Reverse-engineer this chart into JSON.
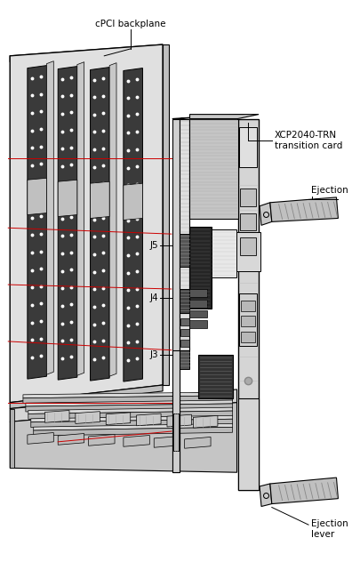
{
  "bg_color": "#ffffff",
  "lc": "#000000",
  "rc": "#cc0000",
  "labels": {
    "backplane": "cPCI backplane",
    "transition_card": "XCP2040-TRN\ntransition card",
    "ejection_top": "Ejection\nlever",
    "ejection_bot": "Ejection\nlever",
    "j5": "J5",
    "j4": "J4",
    "j3": "J3"
  },
  "figsize": [
    4.05,
    6.5
  ],
  "dpi": 100
}
